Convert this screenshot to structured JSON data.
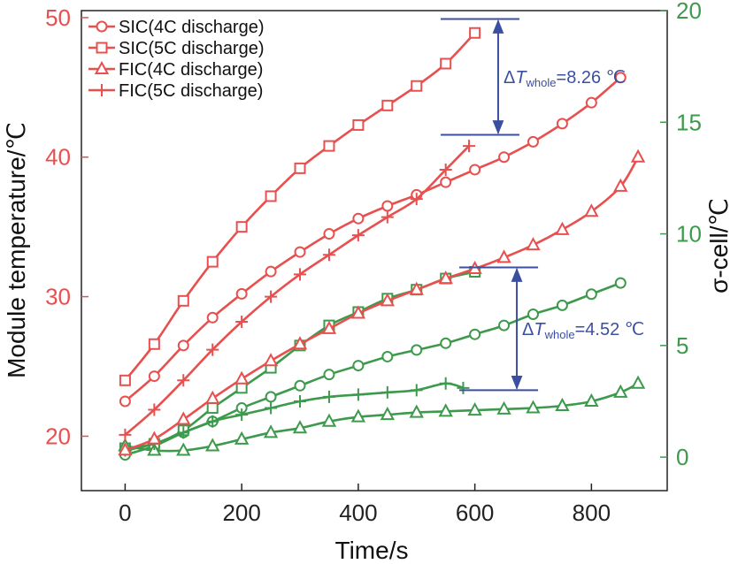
{
  "chart_data": {
    "type": "line",
    "xlabel": "Time/s",
    "ylabel_left": "Module temperature/℃",
    "ylabel_right": "σ-cell/℃",
    "xlim": [
      -75,
      930
    ],
    "ylim_left": [
      16.1,
      50.5
    ],
    "ylim_right": [
      -1.5,
      20.0
    ],
    "xticks": [
      "0",
      "200",
      "400",
      "600",
      "800"
    ],
    "yticks_left": [
      "20",
      "30",
      "40",
      "50"
    ],
    "yticks_right": [
      "0",
      "5",
      "10",
      "15",
      "20"
    ],
    "colors": {
      "red": "#e8504f",
      "green": "#3d9a4c",
      "annotation": "#3b4fa0",
      "axes": "#222222"
    },
    "legend": {
      "position": "top-left",
      "entries": [
        {
          "label": "SIC(4C discharge)",
          "marker": "circle"
        },
        {
          "label": "SIC(5C discharge)",
          "marker": "square"
        },
        {
          "label": "FIC(4C discharge)",
          "marker": "triangle"
        },
        {
          "label": "FIC(5C discharge)",
          "marker": "plus"
        }
      ]
    },
    "series_temperature": [
      {
        "name": "SIC(4C discharge)",
        "marker": "circle",
        "x": [
          0,
          50,
          100,
          150,
          200,
          250,
          300,
          350,
          400,
          450,
          500,
          550,
          600,
          650,
          700,
          750,
          800,
          850
        ],
        "y": [
          22.5,
          24.3,
          26.5,
          28.5,
          30.2,
          31.8,
          33.2,
          34.5,
          35.6,
          36.5,
          37.3,
          38.2,
          39.1,
          40.0,
          41.1,
          42.4,
          43.9,
          45.7
        ]
      },
      {
        "name": "SIC(5C discharge)",
        "marker": "square",
        "x": [
          0,
          50,
          100,
          150,
          200,
          250,
          300,
          350,
          400,
          450,
          500,
          550,
          600
        ],
        "y": [
          24.0,
          26.6,
          29.7,
          32.5,
          35.0,
          37.2,
          39.2,
          40.8,
          42.3,
          43.7,
          45.1,
          46.7,
          48.9
        ]
      },
      {
        "name": "FIC(4C discharge)",
        "marker": "triangle",
        "x": [
          0,
          50,
          100,
          150,
          200,
          250,
          300,
          350,
          400,
          450,
          500,
          550,
          600,
          650,
          700,
          750,
          800,
          850,
          880
        ],
        "y": [
          19.0,
          19.8,
          21.2,
          22.7,
          24.1,
          25.4,
          26.6,
          27.7,
          28.8,
          29.7,
          30.5,
          31.3,
          32.0,
          32.8,
          33.7,
          34.8,
          36.1,
          37.9,
          40.0
        ]
      },
      {
        "name": "FIC(5C discharge)",
        "marker": "plus",
        "x": [
          0,
          50,
          100,
          150,
          200,
          250,
          300,
          350,
          400,
          450,
          500,
          550,
          590
        ],
        "y": [
          20.1,
          21.9,
          24.0,
          26.2,
          28.2,
          30.0,
          31.6,
          33.0,
          34.4,
          35.7,
          37.0,
          39.1,
          40.8
        ]
      }
    ],
    "series_sigma": [
      {
        "name": "SIC(4C discharge)",
        "marker": "circle",
        "x": [
          0,
          50,
          100,
          150,
          200,
          250,
          300,
          350,
          400,
          450,
          500,
          550,
          600,
          650,
          700,
          750,
          800,
          850
        ],
        "y": [
          0.1,
          0.5,
          1.1,
          1.6,
          2.2,
          2.7,
          3.2,
          3.7,
          4.1,
          4.5,
          4.8,
          5.1,
          5.5,
          5.9,
          6.4,
          6.8,
          7.3,
          7.8
        ]
      },
      {
        "name": "SIC(5C discharge)",
        "marker": "square",
        "x": [
          0,
          50,
          100,
          150,
          200,
          250,
          300,
          350,
          400,
          450,
          500,
          550,
          600
        ],
        "y": [
          0.4,
          0.6,
          1.2,
          2.2,
          3.1,
          4.0,
          5.0,
          5.9,
          6.5,
          7.1,
          7.5,
          8.0,
          8.3
        ]
      },
      {
        "name": "FIC(4C discharge)",
        "marker": "triangle",
        "x": [
          0,
          50,
          100,
          150,
          200,
          250,
          300,
          350,
          400,
          450,
          500,
          550,
          600,
          650,
          700,
          750,
          800,
          850,
          880
        ],
        "y": [
          0.5,
          0.3,
          0.3,
          0.5,
          0.8,
          1.1,
          1.3,
          1.6,
          1.8,
          1.9,
          2.0,
          2.05,
          2.1,
          2.15,
          2.2,
          2.3,
          2.5,
          2.9,
          3.3
        ]
      },
      {
        "name": "FIC(5C discharge)",
        "marker": "plus",
        "x": [
          0,
          50,
          100,
          150,
          200,
          250,
          300,
          350,
          400,
          450,
          500,
          550,
          580
        ],
        "y": [
          0.3,
          0.6,
          1.1,
          1.6,
          1.9,
          2.2,
          2.5,
          2.7,
          2.8,
          2.9,
          3.0,
          3.3,
          3.1
        ]
      }
    ],
    "annotations": [
      {
        "text_prefix": "Δ",
        "text_var": "T",
        "text_sub": "whole",
        "text_value": "=8.26 ℃",
        "axis": "left",
        "y_top": 49.9,
        "y_bottom": 41.6,
        "x_arrow": 640
      },
      {
        "text_prefix": "Δ",
        "text_var": "T",
        "text_sub": "whole",
        "text_value": "=4.52 ℃",
        "axis": "right",
        "y_top": 8.5,
        "y_bottom": 3.0,
        "x_arrow": 672
      }
    ]
  }
}
